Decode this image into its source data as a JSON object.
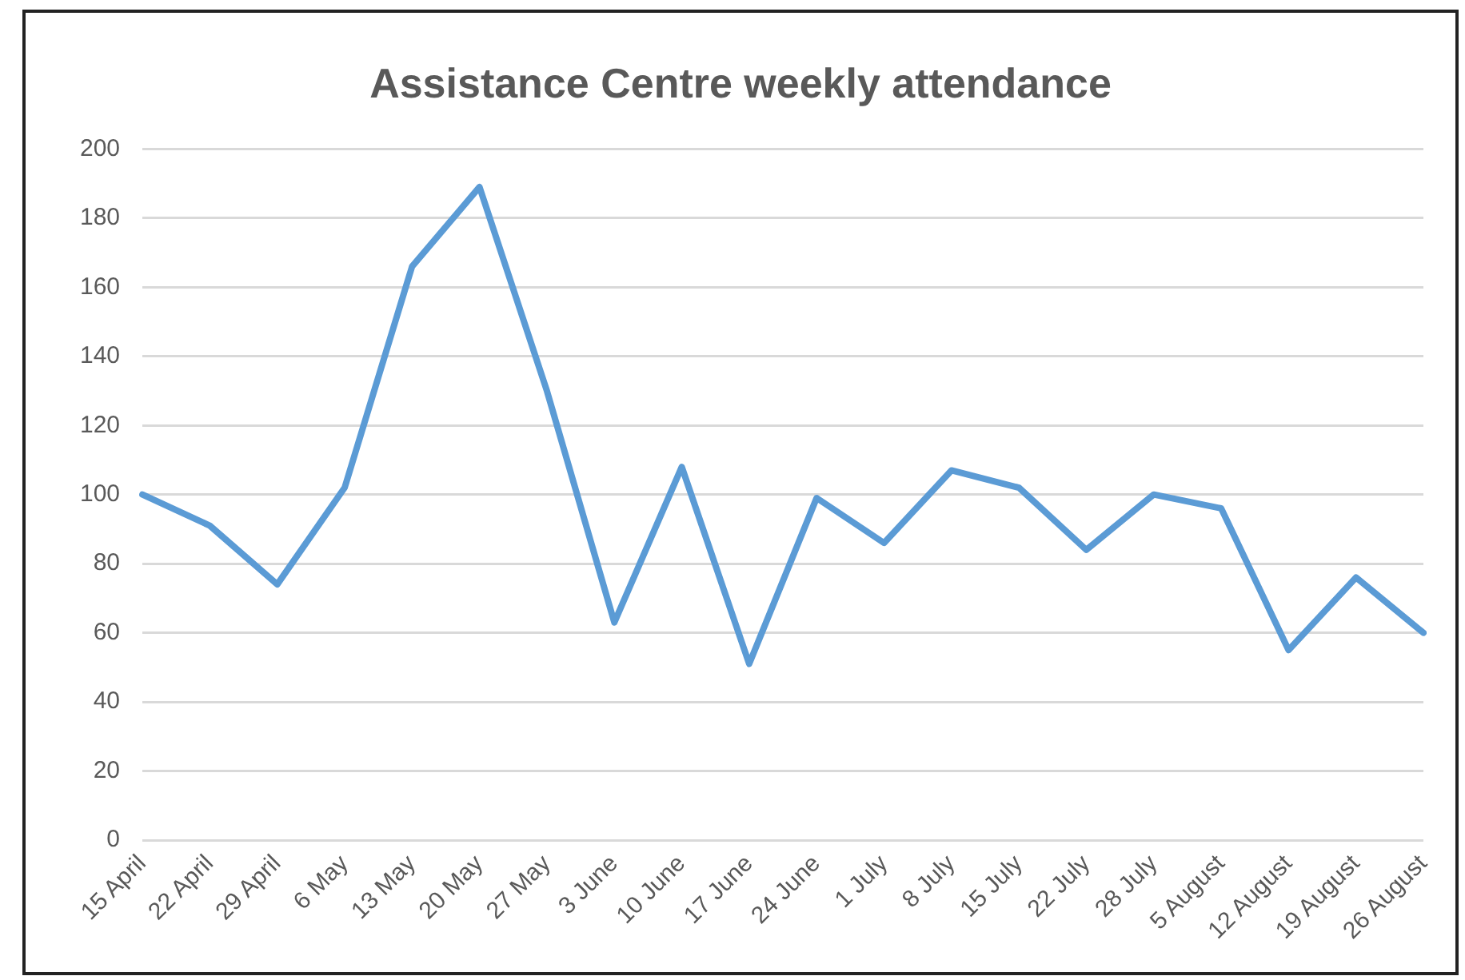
{
  "chart_data": {
    "type": "line",
    "title": "Assistance Centre weekly attendance",
    "categories": [
      "15 April",
      "22 April",
      "29 April",
      "6 May",
      "13 May",
      "20 May",
      "27 May",
      "3 June",
      "10 June",
      "17 June",
      "24 June",
      "1 July",
      "8 July",
      "15 July",
      "22 July",
      "28 July",
      "5 August",
      "12 August",
      "19 August",
      "26 August"
    ],
    "series": [
      {
        "color": "#5b9bd5",
        "values": [
          100,
          91,
          74,
          102,
          166,
          189,
          130,
          63,
          108,
          51,
          99,
          86,
          107,
          102,
          84,
          100,
          96,
          55,
          76,
          60
        ]
      }
    ],
    "ylim": [
      0,
      200
    ],
    "yticks": [
      0,
      20,
      40,
      60,
      80,
      100,
      120,
      140,
      160,
      180,
      200
    ],
    "grid": "y",
    "legend": false,
    "marker": "none",
    "line_style": "solid"
  }
}
